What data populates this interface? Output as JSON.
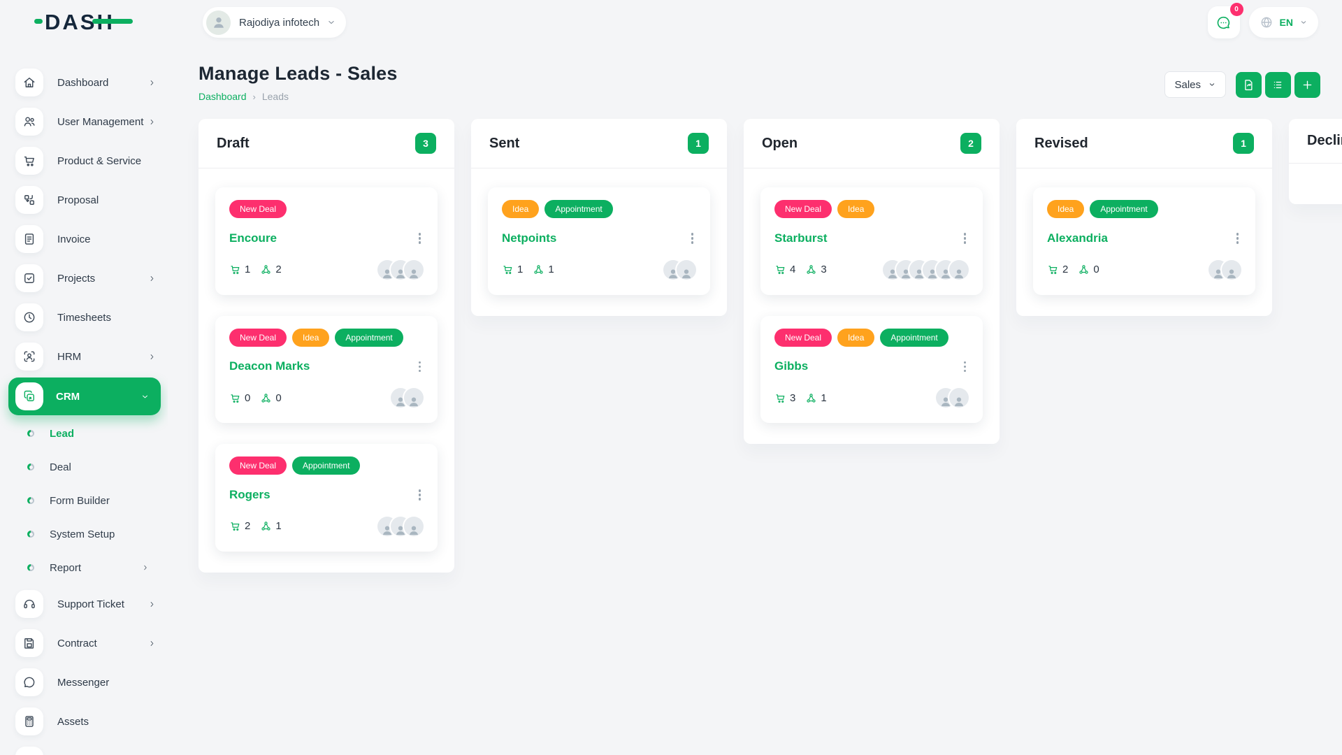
{
  "brand": {
    "name": "DASH",
    "accent_color": "#0caf60",
    "dark_color": "#15273b"
  },
  "topbar": {
    "company": {
      "name": "Rajodiya infotech"
    },
    "chat": {
      "badge_count": "0"
    },
    "language": {
      "label": "EN"
    }
  },
  "page": {
    "title": "Manage Leads - Sales",
    "breadcrumb": {
      "home": "Dashboard",
      "separator": "›",
      "current": "Leads"
    },
    "actions": {
      "pipeline_value": "Sales",
      "buttons": [
        {
          "name": "convert-lead",
          "icon": "file-refresh-icon"
        },
        {
          "name": "list-view",
          "icon": "list-icon"
        },
        {
          "name": "add-lead",
          "icon": "plus-icon"
        }
      ]
    }
  },
  "sidebar": {
    "items": [
      {
        "label": "Dashboard",
        "icon": "home-icon",
        "chevron": "right"
      },
      {
        "label": "User Management",
        "icon": "users-icon",
        "chevron": "right"
      },
      {
        "label": "Product & Service",
        "icon": "cart-icon",
        "chevron": null
      },
      {
        "label": "Proposal",
        "icon": "proposal-icon",
        "chevron": null
      },
      {
        "label": "Invoice",
        "icon": "invoice-icon",
        "chevron": null
      },
      {
        "label": "Projects",
        "icon": "check-square-icon",
        "chevron": "right"
      },
      {
        "label": "Timesheets",
        "icon": "clock-icon",
        "chevron": null
      },
      {
        "label": "HRM",
        "icon": "hrm-icon",
        "chevron": "right"
      },
      {
        "label": "CRM",
        "icon": "crm-icon",
        "chevron": "down",
        "active": true,
        "children": [
          {
            "label": "Lead",
            "active": true
          },
          {
            "label": "Deal"
          },
          {
            "label": "Form Builder"
          },
          {
            "label": "System Setup"
          },
          {
            "label": "Report",
            "chevron": "right"
          }
        ]
      },
      {
        "label": "Support Ticket",
        "icon": "headset-icon",
        "chevron": "right"
      },
      {
        "label": "Contract",
        "icon": "save-icon",
        "chevron": "right"
      },
      {
        "label": "Messenger",
        "icon": "messenger-icon",
        "chevron": null
      },
      {
        "label": "Assets",
        "icon": "calculator-icon",
        "chevron": null
      },
      {
        "label": "",
        "icon": "hidden-icon",
        "chevron": null,
        "partial": true
      }
    ]
  },
  "board": {
    "tag_colors": {
      "New Deal": "#fd2f6e",
      "Idea": "#ffa21d",
      "Appointment": "#0caf60"
    },
    "columns": [
      {
        "name": "Draft",
        "count": "3",
        "cards": [
          {
            "tags": [
              "New Deal"
            ],
            "title": "Encoure",
            "products": "1",
            "sources": "2",
            "avatar_count": 3
          },
          {
            "tags": [
              "New Deal",
              "Idea",
              "Appointment"
            ],
            "title": "Deacon Marks",
            "products": "0",
            "sources": "0",
            "avatar_count": 2
          },
          {
            "tags": [
              "New Deal",
              "Appointment"
            ],
            "title": "Rogers",
            "products": "2",
            "sources": "1",
            "avatar_count": 3
          }
        ]
      },
      {
        "name": "Sent",
        "count": "1",
        "cards": [
          {
            "tags": [
              "Idea",
              "Appointment"
            ],
            "title": "Netpoints",
            "products": "1",
            "sources": "1",
            "avatar_count": 2
          }
        ]
      },
      {
        "name": "Open",
        "count": "2",
        "cards": [
          {
            "tags": [
              "New Deal",
              "Idea"
            ],
            "title": "Starburst",
            "products": "4",
            "sources": "3",
            "avatar_count": 6
          },
          {
            "tags": [
              "New Deal",
              "Idea",
              "Appointment"
            ],
            "title": "Gibbs",
            "products": "3",
            "sources": "1",
            "avatar_count": 2
          }
        ]
      },
      {
        "name": "Revised",
        "count": "1",
        "cards": [
          {
            "tags": [
              "Idea",
              "Appointment"
            ],
            "title": "Alexandria",
            "products": "2",
            "sources": "0",
            "avatar_count": 2
          }
        ]
      },
      {
        "name": "Declined",
        "count": "",
        "cards": []
      }
    ]
  }
}
